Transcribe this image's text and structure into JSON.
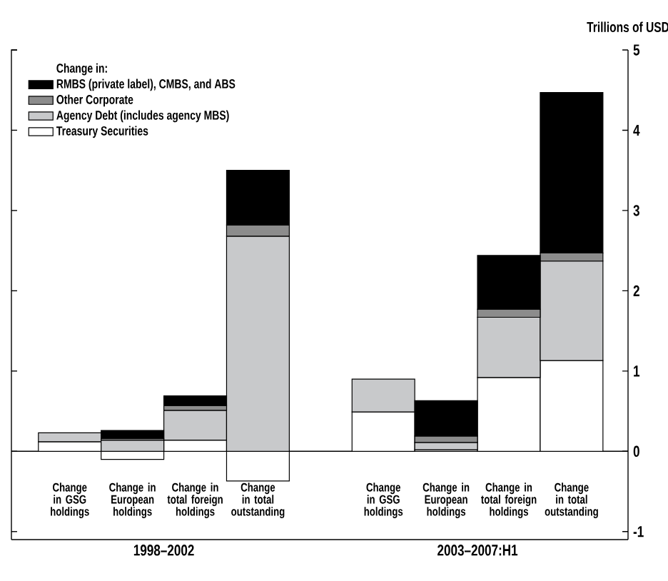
{
  "chart_data": {
    "type": "bar",
    "stacked": true,
    "ylabel": "Trillions of USD",
    "legend_title": "Change in:",
    "legend": "top left",
    "categories": [
      "Change in GSG holdings",
      "Change in European holdings",
      "Change in total foreign holdings",
      "Change in total outstanding",
      "Change in GSG holdings",
      "Change in European holdings",
      "Change in total foreign holdings",
      "Change in total outstanding"
    ],
    "series": [
      {
        "name": "Treasury Securities",
        "color": "#ffffff",
        "values": [
          0.12,
          -0.1,
          0.14,
          -0.37,
          0.49,
          0.02,
          0.92,
          1.13
        ]
      },
      {
        "name": "Agency Debt (includes agency MBS)",
        "color": "#c8c9cb",
        "values": [
          0.11,
          0.14,
          0.37,
          2.68,
          0.41,
          0.09,
          0.75,
          1.24
        ]
      },
      {
        "name": "Other Corporate",
        "color": "#8c8c8c",
        "values": [
          0,
          0.02,
          0.06,
          0.14,
          0,
          0.08,
          0.1,
          0.1
        ]
      },
      {
        "name": "RMBS (private label), CMBS, and ABS",
        "color": "#000000",
        "values": [
          0,
          0.1,
          0.12,
          0.68,
          0,
          0.44,
          0.67,
          2.0
        ]
      }
    ],
    "ylim": [
      -1.1,
      5
    ],
    "yticks": [
      -1,
      0,
      1,
      2,
      3,
      4,
      5
    ],
    "annotations": [
      "1998–2002",
      "2003–2007:H1"
    ]
  }
}
